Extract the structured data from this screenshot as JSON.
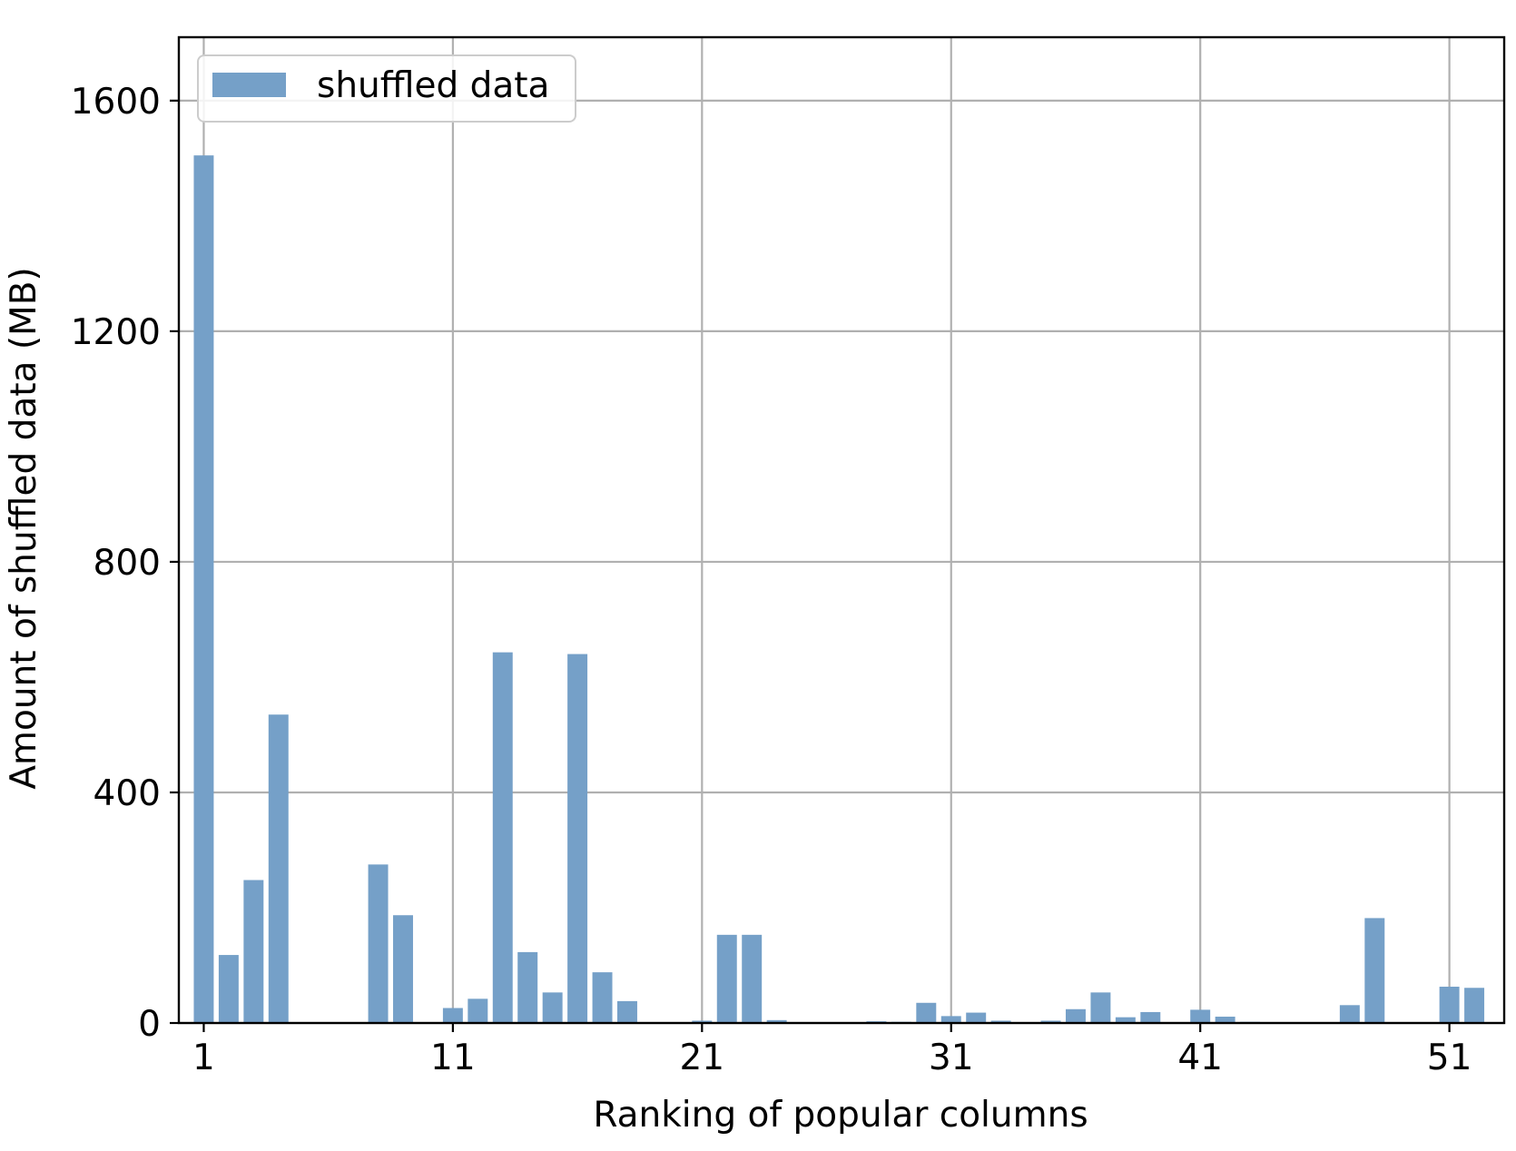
{
  "chart_data": {
    "type": "bar",
    "title": "",
    "xlabel": "Ranking of popular columns",
    "ylabel": "Amount of shuffled data (MB)",
    "x": [
      1,
      2,
      3,
      4,
      5,
      6,
      7,
      8,
      9,
      10,
      11,
      12,
      13,
      14,
      15,
      16,
      17,
      18,
      19,
      20,
      21,
      22,
      23,
      24,
      25,
      26,
      27,
      28,
      29,
      30,
      31,
      32,
      33,
      34,
      35,
      36,
      37,
      38,
      39,
      40,
      41,
      42,
      43,
      44,
      45,
      46,
      47,
      48,
      49,
      50,
      51,
      52
    ],
    "series": [
      {
        "name": "shuffled data",
        "color": "#75a0c8",
        "values": [
          1505,
          118,
          248,
          535,
          1,
          0,
          0,
          275,
          187,
          0,
          26,
          42,
          643,
          123,
          53,
          640,
          88,
          38,
          0,
          0,
          4,
          153,
          153,
          5,
          0,
          0,
          0,
          3,
          2,
          35,
          12,
          18,
          4,
          0,
          4,
          24,
          53,
          10,
          19,
          0,
          23,
          11,
          2,
          0,
          0,
          0,
          31,
          182,
          0,
          0,
          63,
          61
        ]
      }
    ],
    "xticks": [
      1,
      11,
      21,
      31,
      41,
      51
    ],
    "yticks": [
      0,
      400,
      800,
      1200,
      1600
    ],
    "xlim": [
      0,
      53.2
    ],
    "ylim": [
      0,
      1710
    ],
    "grid": true,
    "legend_position": "top-left"
  }
}
